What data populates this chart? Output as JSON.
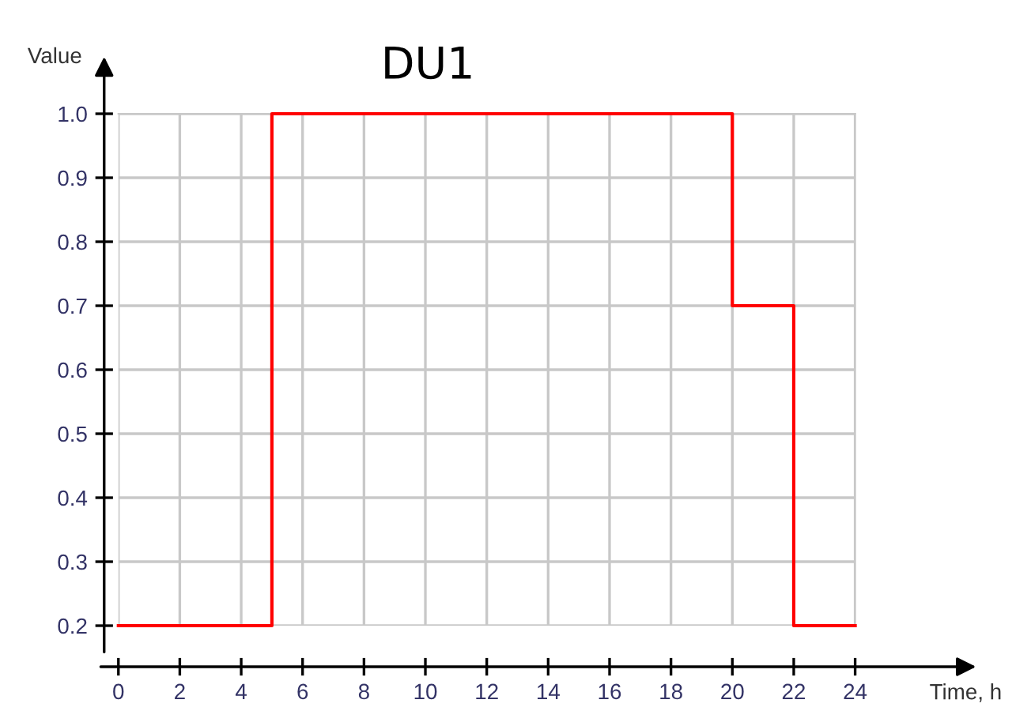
{
  "chart_data": {
    "type": "step",
    "title": "DU1",
    "xlabel": "Time, h",
    "ylabel": "Value",
    "x": [
      0,
      5,
      20,
      22,
      24
    ],
    "series": [
      {
        "color": "#ff0000",
        "values": [
          0.2,
          1.0,
          0.7,
          0.2,
          0.2
        ]
      }
    ],
    "xlim": [
      0,
      24
    ],
    "xticks": [
      0,
      2,
      4,
      6,
      8,
      10,
      12,
      14,
      16,
      18,
      20,
      22,
      24
    ],
    "ylim": [
      0.2,
      1.0
    ],
    "yticks": [
      0.2,
      0.3,
      0.4,
      0.5,
      0.6,
      0.7,
      0.8,
      0.9,
      {
        "value": 1.0,
        "label": "1.0"
      }
    ],
    "grid": true,
    "marker": "none",
    "line_style": "solid"
  }
}
